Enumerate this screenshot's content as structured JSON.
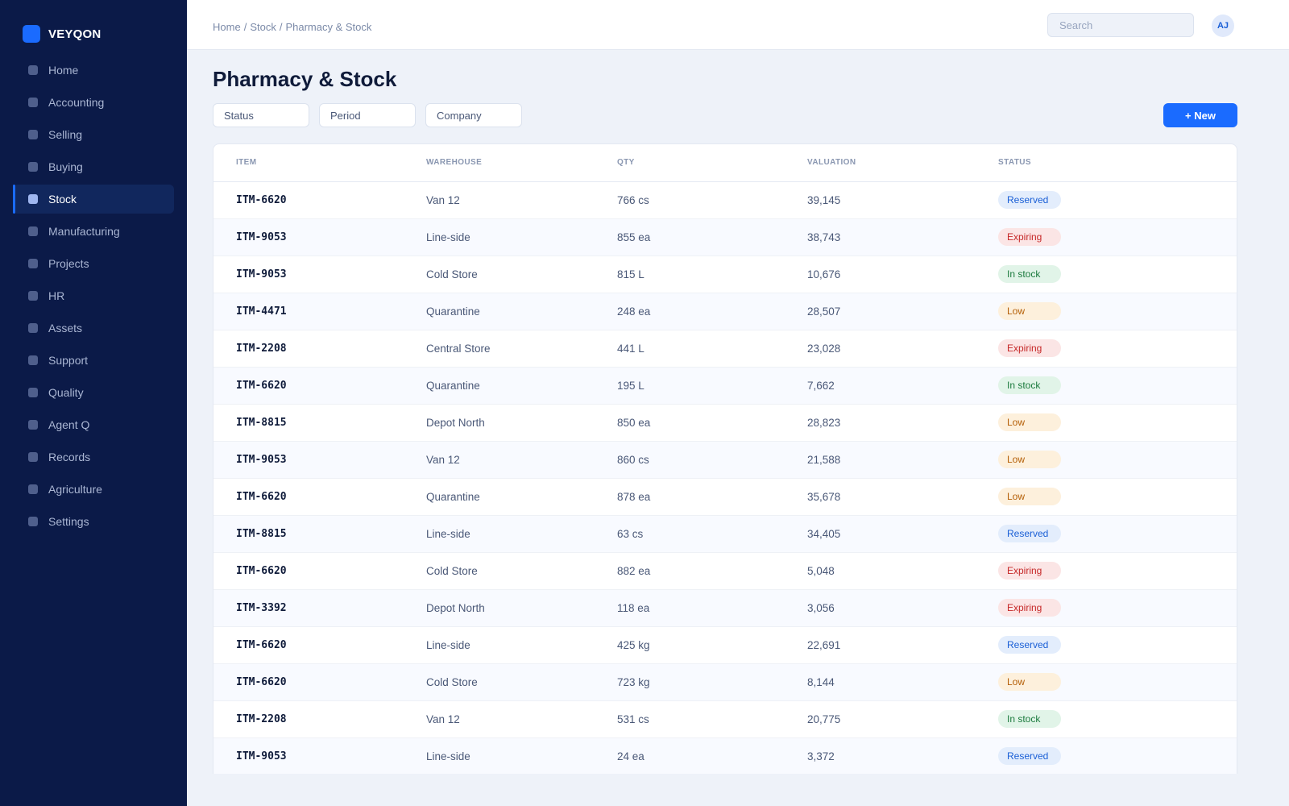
{
  "brand": {
    "name": "VEYQON",
    "accent": "#1a6bff"
  },
  "sidebar": {
    "items": [
      {
        "label": "Home",
        "active": false
      },
      {
        "label": "Accounting",
        "active": false
      },
      {
        "label": "Selling",
        "active": false
      },
      {
        "label": "Buying",
        "active": false
      },
      {
        "label": "Stock",
        "active": true
      },
      {
        "label": "Manufacturing",
        "active": false
      },
      {
        "label": "Projects",
        "active": false
      },
      {
        "label": "HR",
        "active": false
      },
      {
        "label": "Assets",
        "active": false
      },
      {
        "label": "Support",
        "active": false
      },
      {
        "label": "Quality",
        "active": false
      },
      {
        "label": "Agent Q",
        "active": false
      },
      {
        "label": "Records",
        "active": false
      },
      {
        "label": "Agriculture",
        "active": false
      },
      {
        "label": "Settings",
        "active": false
      }
    ]
  },
  "header": {
    "breadcrumb": [
      "Home",
      "Stock",
      "Pharmacy & Stock"
    ],
    "search_placeholder": "Search",
    "avatar_initials": "AJ"
  },
  "main": {
    "title": "Pharmacy & Stock",
    "filters": [
      "Status",
      "Period",
      "Company"
    ],
    "new_button": "+ New"
  },
  "table": {
    "columns": [
      "Item",
      "Warehouse",
      "Qty",
      "Valuation",
      "Status"
    ],
    "rows": [
      {
        "item": "ITM-6620",
        "warehouse": "Van 12",
        "qty": "766 cs",
        "valuation": "39,145",
        "status": "Reserved"
      },
      {
        "item": "ITM-9053",
        "warehouse": "Line-side",
        "qty": "855 ea",
        "valuation": "38,743",
        "status": "Expiring"
      },
      {
        "item": "ITM-9053",
        "warehouse": "Cold Store",
        "qty": "815 L",
        "valuation": "10,676",
        "status": "In stock"
      },
      {
        "item": "ITM-4471",
        "warehouse": "Quarantine",
        "qty": "248 ea",
        "valuation": "28,507",
        "status": "Low"
      },
      {
        "item": "ITM-2208",
        "warehouse": "Central Store",
        "qty": "441 L",
        "valuation": "23,028",
        "status": "Expiring"
      },
      {
        "item": "ITM-6620",
        "warehouse": "Quarantine",
        "qty": "195 L",
        "valuation": "7,662",
        "status": "In stock"
      },
      {
        "item": "ITM-8815",
        "warehouse": "Depot North",
        "qty": "850 ea",
        "valuation": "28,823",
        "status": "Low"
      },
      {
        "item": "ITM-9053",
        "warehouse": "Van 12",
        "qty": "860 cs",
        "valuation": "21,588",
        "status": "Low"
      },
      {
        "item": "ITM-6620",
        "warehouse": "Quarantine",
        "qty": "878 ea",
        "valuation": "35,678",
        "status": "Low"
      },
      {
        "item": "ITM-8815",
        "warehouse": "Line-side",
        "qty": "63 cs",
        "valuation": "34,405",
        "status": "Reserved"
      },
      {
        "item": "ITM-6620",
        "warehouse": "Cold Store",
        "qty": "882 ea",
        "valuation": "5,048",
        "status": "Expiring"
      },
      {
        "item": "ITM-3392",
        "warehouse": "Depot North",
        "qty": "118 ea",
        "valuation": "3,056",
        "status": "Expiring"
      },
      {
        "item": "ITM-6620",
        "warehouse": "Line-side",
        "qty": "425 kg",
        "valuation": "22,691",
        "status": "Reserved"
      },
      {
        "item": "ITM-6620",
        "warehouse": "Cold Store",
        "qty": "723 kg",
        "valuation": "8,144",
        "status": "Low"
      },
      {
        "item": "ITM-2208",
        "warehouse": "Van 12",
        "qty": "531 cs",
        "valuation": "20,775",
        "status": "In stock"
      },
      {
        "item": "ITM-9053",
        "warehouse": "Line-side",
        "qty": "24 ea",
        "valuation": "3,372",
        "status": "Reserved"
      }
    ]
  },
  "status_colors": {
    "Reserved": "#1a5fd6",
    "Expiring": "#c62828",
    "In stock": "#1b7a3d",
    "Low": "#b45f07"
  }
}
